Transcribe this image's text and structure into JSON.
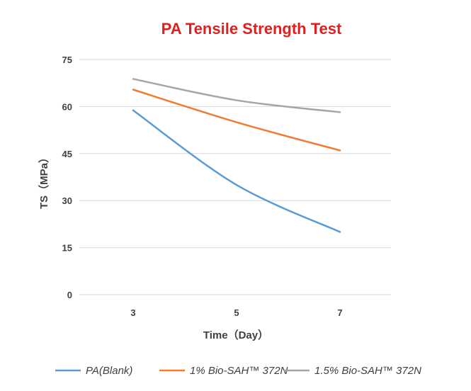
{
  "chart_data": {
    "type": "line",
    "title": "PA Tensile Strength Test",
    "xlabel": "Time（Day）",
    "ylabel": "TS（MPa）",
    "x": [
      3,
      5,
      7
    ],
    "x_tick_labels": [
      "3",
      "5",
      "7"
    ],
    "y_ticks": [
      0,
      15,
      30,
      45,
      60,
      75
    ],
    "y_tick_labels": [
      "0",
      "15",
      "30",
      "45",
      "60",
      "75"
    ],
    "ylim": [
      0,
      75
    ],
    "grid": true,
    "legend_position": "bottom",
    "series": [
      {
        "name": "PA(Blank)",
        "values": [
          58.8,
          35.0,
          20.0
        ],
        "color": "#5b9bd5"
      },
      {
        "name": "1% Bio-SAH™ 372N",
        "values": [
          65.4,
          55.0,
          46.0
        ],
        "color": "#ed7d31"
      },
      {
        "name": "1.5% Bio-SAH™ 372N",
        "values": [
          68.8,
          62.0,
          58.2
        ],
        "color": "#a5a5a5"
      }
    ],
    "title_color": "#e02020",
    "grid_color": "#d9d9d9"
  }
}
